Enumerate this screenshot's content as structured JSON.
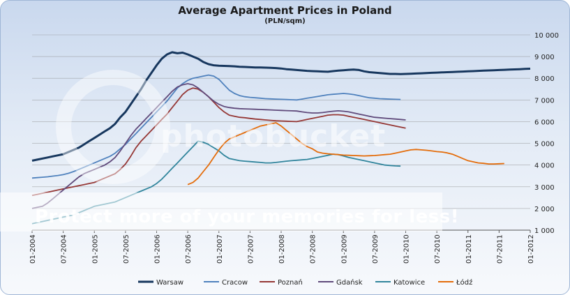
{
  "watermark": {
    "logo": "photobucket",
    "tagline": "Protect more of your memories for less!"
  },
  "colors": {
    "Warsaw": "#17375e",
    "Cracow": "#4f81bd",
    "Poznań": "#953735",
    "Gdańsk": "#604a7b",
    "Katowice": "#31859c",
    "Łódź": "#e46c0a"
  },
  "chart_data": {
    "type": "line",
    "title": "Average Apartment Prices in Poland",
    "subtitle": "(PLN/sqm)",
    "xlabel": "",
    "ylabel": "",
    "ylim": [
      1000,
      10000
    ],
    "y_ticks": [
      1000,
      2000,
      3000,
      4000,
      5000,
      6000,
      7000,
      8000,
      9000,
      10000
    ],
    "y_tick_labels": [
      "1 000",
      "2 000",
      "3 000",
      "4 000",
      "5 000",
      "6 000",
      "7 000",
      "8 000",
      "9 000",
      "10 000"
    ],
    "x_tick_labels": [
      "01-2004",
      "07-2004",
      "01-2005",
      "07-2005",
      "01-2006",
      "07-2006",
      "01-2007",
      "07-2007",
      "01-2008",
      "07-2008",
      "01-2009",
      "07-2009",
      "01-2010",
      "07-2010",
      "01-2011",
      "07-2011",
      "01-2012"
    ],
    "x_range": [
      "01-2004",
      "01-2012"
    ],
    "grid": true,
    "legend_position": "bottom",
    "series": [
      {
        "name": "Warsaw",
        "start": "01-2004",
        "values": [
          4200,
          4250,
          4300,
          4350,
          4400,
          4450,
          4500,
          4600,
          4700,
          4800,
          4950,
          5100,
          5250,
          5400,
          5550,
          5700,
          5900,
          6200,
          6450,
          6800,
          7150,
          7500,
          7900,
          8250,
          8600,
          8900,
          9100,
          9200,
          9150,
          9180,
          9100,
          9000,
          8900,
          8750,
          8650,
          8600,
          8580,
          8570,
          8560,
          8550,
          8530,
          8520,
          8510,
          8500,
          8500,
          8490,
          8480,
          8470,
          8450,
          8420,
          8400,
          8380,
          8360,
          8340,
          8330,
          8320,
          8310,
          8300,
          8330,
          8350,
          8370,
          8390,
          8400,
          8380,
          8320,
          8280,
          8260,
          8240,
          8220,
          8200,
          8200,
          8190,
          8200,
          8210,
          8220,
          8230,
          8240,
          8250,
          8260,
          8270,
          8280,
          8290,
          8300,
          8310,
          8320,
          8330,
          8340,
          8350,
          8360,
          8370,
          8380,
          8390,
          8400,
          8410,
          8420,
          8430,
          8440
        ]
      },
      {
        "name": "Cracow",
        "start": "01-2004",
        "values": [
          3400,
          3420,
          3440,
          3460,
          3490,
          3520,
          3560,
          3620,
          3700,
          3800,
          3900,
          4000,
          4100,
          4200,
          4300,
          4400,
          4550,
          4750,
          4950,
          5200,
          5450,
          5700,
          5950,
          6200,
          6450,
          6700,
          6950,
          7250,
          7550,
          7750,
          7900,
          8000,
          8050,
          8100,
          8150,
          8100,
          7950,
          7700,
          7450,
          7300,
          7200,
          7150,
          7120,
          7100,
          7080,
          7060,
          7050,
          7040,
          7030,
          7020,
          7010,
          7000,
          7040,
          7080,
          7120,
          7160,
          7200,
          7240,
          7260,
          7280,
          7300,
          7280,
          7250,
          7200,
          7150,
          7100,
          7080,
          7060,
          7050,
          7040,
          7030,
          7020
        ]
      },
      {
        "name": "Poznań",
        "start": "01-2004",
        "values": [
          2600,
          2650,
          2700,
          2750,
          2800,
          2850,
          2900,
          2950,
          3000,
          3050,
          3100,
          3150,
          3200,
          3300,
          3400,
          3500,
          3600,
          3800,
          4050,
          4400,
          4800,
          5100,
          5350,
          5600,
          5850,
          6100,
          6350,
          6650,
          6950,
          7250,
          7450,
          7550,
          7500,
          7350,
          7150,
          6900,
          6650,
          6450,
          6300,
          6250,
          6200,
          6180,
          6150,
          6120,
          6100,
          6080,
          6060,
          6040,
          6030,
          6020,
          6010,
          6000,
          6050,
          6100,
          6150,
          6200,
          6250,
          6300,
          6320,
          6320,
          6300,
          6250,
          6200,
          6150,
          6100,
          6050,
          6000,
          5950,
          5900,
          5850,
          5800,
          5750,
          5700
        ]
      },
      {
        "name": "Gdańsk",
        "start": "01-2004",
        "values": [
          2000,
          2050,
          2100,
          2250,
          2450,
          2650,
          2850,
          3050,
          3250,
          3450,
          3600,
          3700,
          3800,
          3900,
          4000,
          4150,
          4350,
          4650,
          5000,
          5350,
          5650,
          5900,
          6150,
          6400,
          6650,
          6900,
          7150,
          7400,
          7600,
          7700,
          7750,
          7700,
          7550,
          7350,
          7150,
          6950,
          6800,
          6700,
          6650,
          6620,
          6600,
          6590,
          6580,
          6570,
          6560,
          6550,
          6540,
          6530,
          6520,
          6510,
          6500,
          6490,
          6450,
          6420,
          6400,
          6400,
          6420,
          6450,
          6480,
          6500,
          6480,
          6450,
          6400,
          6350,
          6300,
          6250,
          6200,
          6180,
          6160,
          6140,
          6120,
          6100,
          6080
        ]
      },
      {
        "name": "Katowice",
        "start": "01-2004",
        "values": [
          1300,
          1350,
          1400,
          1450,
          1500,
          1550,
          1600,
          1650,
          1700,
          1800,
          1900,
          2000,
          2100,
          2150,
          2200,
          2250,
          2300,
          2400,
          2500,
          2600,
          2700,
          2800,
          2900,
          3000,
          3150,
          3350,
          3600,
          3850,
          4100,
          4350,
          4600,
          4850,
          5100,
          5050,
          4950,
          4800,
          4650,
          4450,
          4300,
          4250,
          4200,
          4180,
          4160,
          4140,
          4120,
          4100,
          4100,
          4120,
          4150,
          4180,
          4200,
          4220,
          4240,
          4260,
          4300,
          4350,
          4400,
          4450,
          4500,
          4480,
          4420,
          4350,
          4300,
          4250,
          4200,
          4150,
          4100,
          4050,
          4000,
          3980,
          3960,
          3950
        ]
      },
      {
        "name": "Łódź",
        "start": "07-2006",
        "values": [
          3100,
          3200,
          3400,
          3700,
          4000,
          4350,
          4700,
          5000,
          5200,
          5300,
          5400,
          5500,
          5600,
          5700,
          5800,
          5850,
          5900,
          5950,
          5800,
          5600,
          5400,
          5200,
          5000,
          4850,
          4750,
          4600,
          4550,
          4520,
          4500,
          4480,
          4460,
          4450,
          4440,
          4430,
          4420,
          4430,
          4440,
          4460,
          4480,
          4500,
          4550,
          4600,
          4650,
          4700,
          4720,
          4700,
          4680,
          4650,
          4620,
          4600,
          4560,
          4500,
          4400,
          4300,
          4200,
          4150,
          4100,
          4080,
          4050,
          4050,
          4060,
          4070
        ]
      }
    ]
  }
}
